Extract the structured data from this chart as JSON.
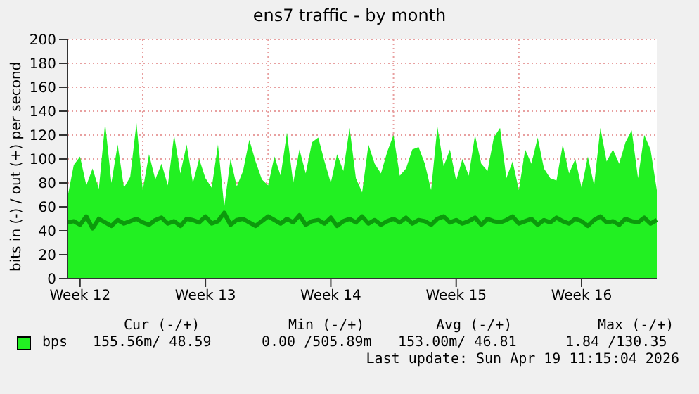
{
  "chart_data": {
    "type": "area",
    "title": "ens7 traffic - by month",
    "ylabel": "bits in (-) / out (+) per second",
    "categories": [
      null,
      null,
      "Week 12",
      null,
      null,
      null,
      null,
      null,
      null,
      null,
      null,
      null,
      null,
      null,
      null,
      null,
      null,
      null,
      null,
      null,
      null,
      null,
      "Week 13",
      null,
      null,
      null,
      null,
      null,
      null,
      null,
      null,
      null,
      null,
      null,
      null,
      null,
      null,
      null,
      null,
      null,
      null,
      null,
      "Week 14",
      null,
      null,
      null,
      null,
      null,
      null,
      null,
      null,
      null,
      null,
      null,
      null,
      null,
      null,
      null,
      null,
      null,
      null,
      null,
      "Week 15",
      null,
      null,
      null,
      null,
      null,
      null,
      null,
      null,
      null,
      null,
      null,
      null,
      null,
      null,
      null,
      null,
      null,
      null,
      null,
      "Week 16",
      null,
      null,
      null,
      null,
      null,
      null,
      null,
      null,
      null,
      null,
      null,
      null
    ],
    "series": [
      {
        "name": "bps",
        "color": "#22f022",
        "values": [
          68,
          95,
          102,
          78,
          92,
          75,
          130,
          80,
          112,
          76,
          85,
          130,
          74,
          104,
          83,
          96,
          78,
          120,
          88,
          112,
          80,
          100,
          84,
          76,
          112,
          60,
          100,
          77,
          90,
          116,
          98,
          83,
          78,
          102,
          86,
          122,
          80,
          108,
          88,
          114,
          118,
          98,
          80,
          104,
          90,
          126,
          84,
          72,
          112,
          96,
          88,
          106,
          120,
          86,
          92,
          108,
          110,
          96,
          74,
          127,
          94,
          108,
          82,
          100,
          86,
          120,
          96,
          90,
          118,
          126,
          84,
          98,
          74,
          108,
          96,
          118,
          92,
          84,
          82,
          112,
          88,
          100,
          76,
          102,
          78,
          126,
          98,
          108,
          96,
          114,
          124,
          84,
          120,
          108,
          74
        ]
      },
      {
        "type": "line",
        "color": "#0c9a0c",
        "values": [
          47,
          48,
          45,
          52,
          42,
          50,
          47,
          44,
          49,
          46,
          48,
          50,
          47,
          45,
          49,
          51,
          46,
          48,
          44,
          50,
          49,
          47,
          52,
          46,
          48,
          55,
          45,
          49,
          50,
          47,
          44,
          48,
          52,
          49,
          46,
          50,
          47,
          53,
          45,
          48,
          49,
          46,
          51,
          44,
          48,
          50,
          47,
          52,
          46,
          49,
          45,
          48,
          50,
          47,
          51,
          46,
          49,
          48,
          45,
          50,
          52,
          47,
          49,
          46,
          48,
          51,
          45,
          50,
          48,
          47,
          49,
          52,
          46,
          48,
          50,
          45,
          49,
          47,
          51,
          48,
          46,
          50,
          48,
          44,
          49,
          52,
          47,
          48,
          45,
          50,
          48,
          47,
          51,
          46,
          49
        ]
      }
    ],
    "ylim": [
      0,
      200
    ],
    "yticks": [
      0,
      20,
      40,
      60,
      80,
      100,
      120,
      140,
      160,
      180,
      200
    ],
    "grid": true,
    "legend": "bottom",
    "annotations": [
      "Cur (-/+)",
      "Min (-/+)",
      "Avg (-/+)",
      "Max (-/+)",
      "155.56m/ 48.59",
      "0.00 /505.89m",
      "153.00m/ 46.81",
      "1.84 /130.35",
      "Last update: Sun Apr 19 11:15:04 2026"
    ]
  }
}
